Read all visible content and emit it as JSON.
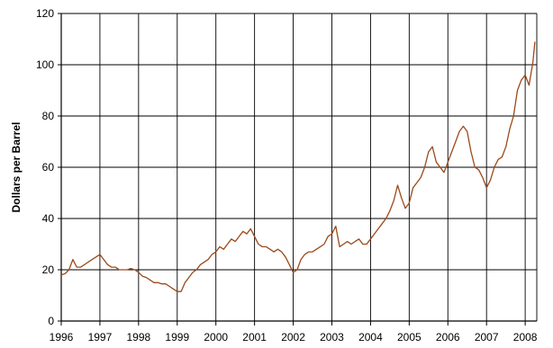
{
  "chart_data": {
    "type": "line",
    "title": "",
    "xlabel": "",
    "ylabel": "Dollars per Barrel",
    "xlim": [
      1996,
      2008.3
    ],
    "ylim": [
      0,
      120
    ],
    "x_ticks": [
      "1996",
      "1997",
      "1998",
      "1999",
      "2000",
      "2001",
      "2002",
      "2003",
      "2004",
      "2005",
      "2006",
      "2007",
      "2008"
    ],
    "y_ticks": [
      "0",
      "20",
      "40",
      "60",
      "80",
      "100",
      "120"
    ],
    "grid": true,
    "legend": "none",
    "colors": {
      "series": "#9b4a1a",
      "grid": "#000000",
      "axis": "#000000"
    },
    "series": [
      {
        "x": [
          1996.0,
          1996.1,
          1996.2,
          1996.3,
          1996.4,
          1996.5,
          1996.6,
          1996.7,
          1996.8,
          1996.9,
          1997.0,
          1997.1,
          1997.2,
          1997.3,
          1997.4,
          1997.5,
          1997.6,
          1997.7,
          1997.8,
          1997.9,
          1998.0,
          1998.1,
          1998.2,
          1998.3,
          1998.4,
          1998.5,
          1998.6,
          1998.7,
          1998.8,
          1998.9,
          1999.0,
          1999.1,
          1999.2,
          1999.3,
          1999.4,
          1999.5,
          1999.6,
          1999.7,
          1999.8,
          1999.9,
          2000.0,
          2000.1,
          2000.2,
          2000.3,
          2000.4,
          2000.5,
          2000.6,
          2000.7,
          2000.8,
          2000.9,
          2001.0,
          2001.1,
          2001.2,
          2001.3,
          2001.4,
          2001.5,
          2001.6,
          2001.7,
          2001.8,
          2001.9,
          2002.0,
          2002.1,
          2002.2,
          2002.3,
          2002.4,
          2002.5,
          2002.6,
          2002.7,
          2002.8,
          2002.9,
          2003.0,
          2003.1,
          2003.2,
          2003.3,
          2003.4,
          2003.5,
          2003.6,
          2003.7,
          2003.8,
          2003.9,
          2004.0,
          2004.1,
          2004.2,
          2004.3,
          2004.4,
          2004.5,
          2004.6,
          2004.7,
          2004.8,
          2004.9,
          2005.0,
          2005.1,
          2005.2,
          2005.3,
          2005.4,
          2005.5,
          2005.6,
          2005.7,
          2005.8,
          2005.9,
          2006.0,
          2006.1,
          2006.2,
          2006.3,
          2006.4,
          2006.5,
          2006.6,
          2006.7,
          2006.8,
          2006.9,
          2007.0,
          2007.1,
          2007.2,
          2007.3,
          2007.4,
          2007.5,
          2007.6,
          2007.7,
          2007.8,
          2007.9,
          2008.0,
          2008.1,
          2008.2,
          2008.25
        ],
        "y": [
          18,
          18.5,
          20,
          24,
          21,
          21,
          22,
          23,
          24,
          25,
          26,
          24,
          22,
          21,
          21,
          20,
          20,
          20,
          20.5,
          20,
          19,
          17.5,
          17,
          16,
          15,
          15,
          14.5,
          14.5,
          13.5,
          12.5,
          11.5,
          11.5,
          15,
          17,
          19,
          20,
          22,
          23,
          24,
          26,
          27,
          29,
          28,
          30,
          32,
          31,
          33,
          35,
          34,
          36,
          33,
          30,
          29,
          29,
          28,
          27,
          28,
          27,
          25,
          22,
          19,
          20,
          24,
          26,
          27,
          27,
          28,
          29,
          30,
          33,
          34,
          37,
          29,
          30,
          31,
          30,
          31,
          32,
          30,
          30,
          32,
          34,
          36,
          38,
          40,
          43,
          47,
          53,
          48,
          44,
          46,
          52,
          54,
          56,
          60,
          66,
          68,
          62,
          60,
          58,
          62,
          66,
          70,
          74,
          76,
          74,
          66,
          60,
          59,
          56,
          52,
          55,
          60,
          63,
          64,
          68,
          75,
          80,
          90,
          94,
          96,
          92,
          101,
          109
        ]
      }
    ]
  }
}
